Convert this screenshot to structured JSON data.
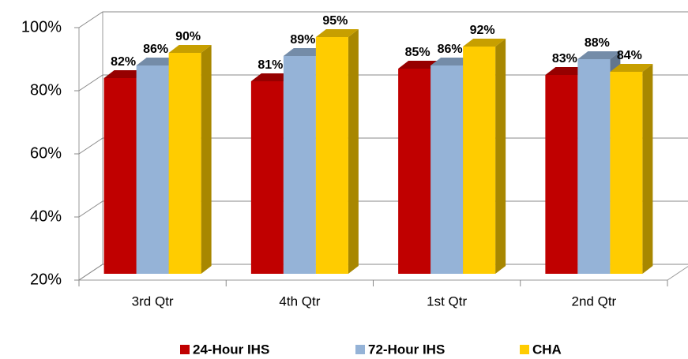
{
  "chart_data": {
    "type": "bar3d",
    "categories": [
      "3rd Qtr",
      "4th Qtr",
      "1st Qtr",
      "2nd Qtr"
    ],
    "series": [
      {
        "name": "24-Hour IHS",
        "color": "#c00000",
        "values": [
          82,
          81,
          85,
          83
        ],
        "value_labels": [
          "82%",
          "81%",
          "85%",
          "83%"
        ]
      },
      {
        "name": "72-Hour IHS",
        "color": "#95b3d7",
        "values": [
          86,
          89,
          86,
          88
        ],
        "value_labels": [
          "86%",
          "89%",
          "86%",
          "88%"
        ]
      },
      {
        "name": "CHA",
        "color": "#ffcc00",
        "values": [
          90,
          95,
          92,
          84
        ],
        "value_labels": [
          "90%",
          "95%",
          "92%",
          "84%"
        ]
      }
    ],
    "ylim": [
      20,
      100
    ],
    "yticks": [
      {
        "value": 20,
        "label": "20%"
      },
      {
        "value": 40,
        "label": "40%"
      },
      {
        "value": 60,
        "label": "60%"
      },
      {
        "value": 80,
        "label": "80%"
      },
      {
        "value": 100,
        "label": "100%"
      }
    ],
    "grid": true,
    "legend": "bottom"
  }
}
